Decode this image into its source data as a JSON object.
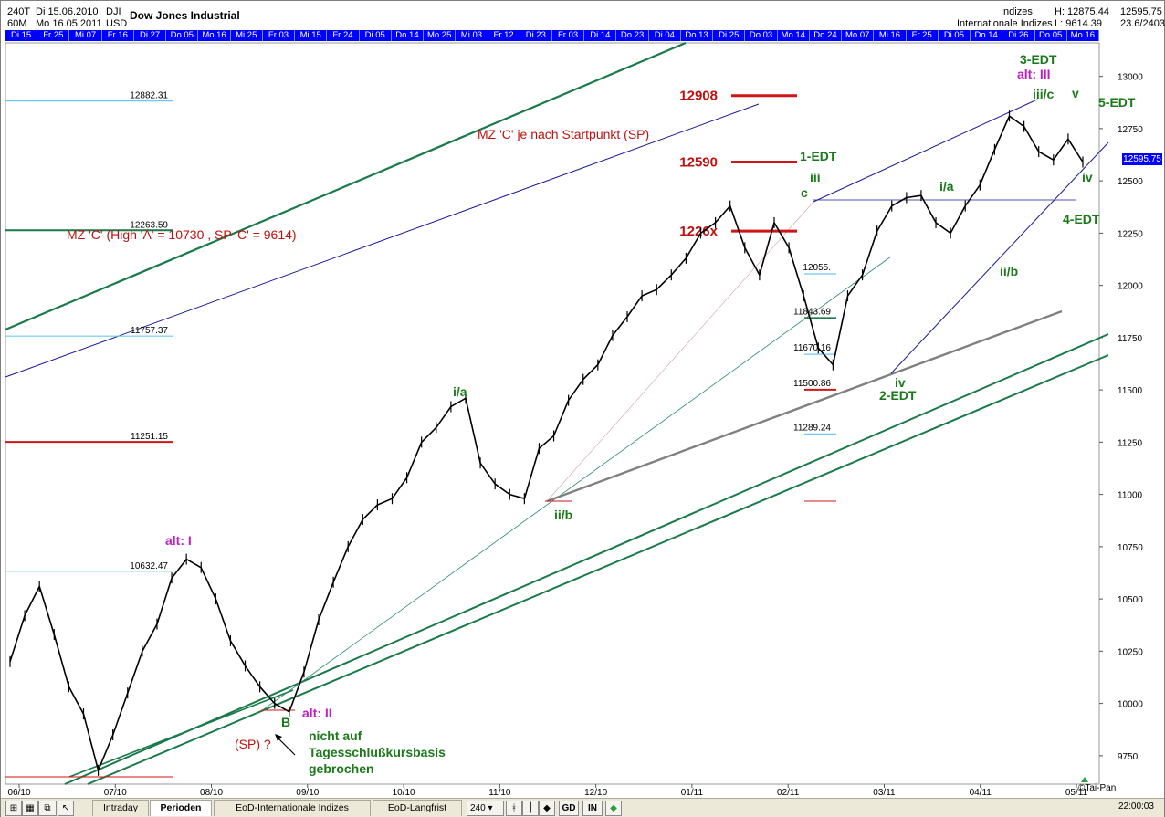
{
  "header": {
    "interval": "240T",
    "from": "Di 15.06.2010",
    "sub_interval": "60M",
    "to": "Mo 16.05.2011",
    "symbol": "DJI",
    "currency": "USD",
    "title": "Dow Jones Industrial",
    "category": "Indizes",
    "group": "Internationale Indizes",
    "high": "H: 12875.44",
    "low": "L: 9614.39",
    "last": "12595.75",
    "counter": "23.6/2403"
  },
  "date_strip": [
    "Di 15",
    "Fr 25",
    "Mi 07",
    "Fr 16",
    "Di 27",
    "Do 05",
    "Mo 16",
    "Mi 25",
    "Fr 03",
    "Mi 15",
    "Fr 24",
    "Di 05",
    "Do 14",
    "Mo 25",
    "Mi 03",
    "Fr 12",
    "Di 23",
    "Fr 03",
    "Di 14",
    "Do 23",
    "Di 04",
    "Do 13",
    "Di 25",
    "Do 03",
    "Mo 14",
    "Do 24",
    "Mo 07",
    "Mi 16",
    "Fr 25",
    "Di 05",
    "Do 14",
    "Di 26",
    "Do 05",
    "Mo 16"
  ],
  "chart_data": {
    "type": "line",
    "title": "Dow Jones Industrial",
    "ylim": [
      9614,
      13160
    ],
    "y_ticks": [
      9750,
      10000,
      10250,
      10500,
      10750,
      11000,
      11250,
      11500,
      11750,
      12000,
      12250,
      12500,
      12750,
      13000
    ],
    "x_tick_labels": [
      "06/10",
      "07/10",
      "08/10",
      "09/10",
      "10/10",
      "11/10",
      "12/10",
      "01/11",
      "02/11",
      "03/11",
      "04/11",
      "05/11"
    ],
    "last_price": "12595.75",
    "series": [
      {
        "values": [
          10200,
          10420,
          10560,
          10330,
          10080,
          9950,
          9680,
          9850,
          10050,
          10250,
          10380,
          10600,
          10690,
          10650,
          10500,
          10300,
          10180,
          10080,
          10000,
          9960,
          10150,
          10400,
          10580,
          10750,
          10880,
          10950,
          10980,
          11080,
          11250,
          11320,
          11420,
          11460,
          11150,
          11050,
          11000,
          10980,
          11220,
          11280,
          11450,
          11550,
          11620,
          11760,
          11850,
          11950,
          11980,
          12050,
          12130,
          12250,
          12300,
          12380,
          12180,
          12050,
          12300,
          12180,
          11950,
          11700,
          11620,
          11950,
          12050,
          12260,
          12380,
          12420,
          12430,
          12300,
          12250,
          12380,
          12480,
          12650,
          12810,
          12760,
          12640,
          12600,
          12700,
          12590
        ]
      }
    ],
    "horizontal_levels": [
      {
        "label": "12882.31",
        "value": 12882.31,
        "color": "#6fc8f0"
      },
      {
        "label": "12263.59",
        "value": 12263.59,
        "color": "#1a7a4a"
      },
      {
        "label": "11757.37",
        "value": 11757.37,
        "color": "#6fc8f0"
      },
      {
        "label": "11251.15",
        "value": 11251.15,
        "color": "#d01515"
      },
      {
        "label": "10632.47",
        "value": 10632.47,
        "color": "#6fc8f0"
      }
    ],
    "fib_levels": [
      {
        "label": "12055.",
        "value": 12055,
        "color": "#6fc8f0"
      },
      {
        "label": "11843.69",
        "value": 11843.69,
        "color": "#1a7a4a"
      },
      {
        "label": "11670.16",
        "value": 11670.16,
        "color": "#6fc8f0"
      },
      {
        "label": "11500.86",
        "value": 11500.86,
        "color": "#d01515"
      },
      {
        "label": "11289.24",
        "value": 11289.24,
        "color": "#6fc8f0"
      }
    ],
    "target_levels": [
      {
        "label": "12908",
        "value": 12908
      },
      {
        "label": "12590",
        "value": 12590
      },
      {
        "label": "1226x",
        "value": 12260
      }
    ],
    "annotations": {
      "mz_c_start": "MZ 'C' je nach Startpunkt (SP)",
      "mz_c_high": "MZ 'C' (High 'A' = 10730 , SP 'C' = 9614)",
      "edt_1": "1-EDT",
      "edt_2": "2-EDT",
      "edt_3": "3-EDT",
      "edt_4": "4-EDT",
      "edt_5": "5-EDT",
      "alt_1": "alt: I",
      "alt_2": "alt: II",
      "alt_3": "alt: III",
      "wave_ia_1": "i/a",
      "wave_iib_1": "ii/b",
      "wave_iii_1": "iii",
      "wave_c": "c",
      "wave_iv_1": "iv",
      "wave_ia_2": "i/a",
      "wave_iib_2": "ii/b",
      "wave_iiic": "iii/c",
      "wave_iv_2": "iv",
      "wave_v": "v",
      "wave_b": "B",
      "sp_question": "(SP) ?",
      "note_1": "nicht auf",
      "note_2": "Tagesschlußkursbasis",
      "note_3": "gebrochen"
    }
  },
  "toolbar": {
    "tabs": [
      "Intraday",
      "Perioden",
      "EoD-Internationale Indizes",
      "EoD-Langfrist"
    ],
    "active_tab": "Perioden",
    "interval_value": "240",
    "gd_label": "GD",
    "in_label": "IN",
    "copyright": "©Tai-Pan",
    "time": "22:00:03"
  }
}
